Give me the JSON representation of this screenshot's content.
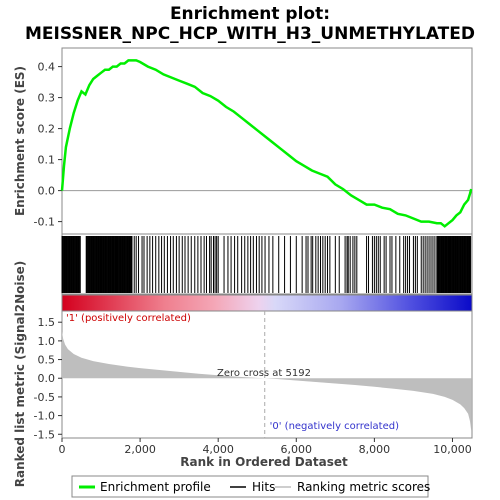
{
  "chart_data": {
    "type": "line",
    "title_line1": "Enrichment plot:",
    "title_line2": "MEISSNER_NPC_HCP_WITH_H3_UNMETHYLATED",
    "es_ylabel": "Enrichment score (ES)",
    "metric_ylabel": "Ranked list metric (Signal2Noise)",
    "xlabel": "Rank in Ordered Dataset",
    "xlim": [
      0,
      10500
    ],
    "x_ticks": [
      0,
      2000,
      4000,
      6000,
      8000,
      10000
    ],
    "x_tick_labels": [
      "0",
      "2,000",
      "4,000",
      "6,000",
      "8,000",
      "10,000"
    ],
    "es_ylim": [
      -0.14,
      0.46
    ],
    "es_ticks": [
      -0.1,
      0.0,
      0.1,
      0.2,
      0.3,
      0.4
    ],
    "es_tick_labels": [
      "-0.1",
      "0.0",
      "0.1",
      "0.2",
      "0.3",
      "0.4"
    ],
    "metric_ylim": [
      -1.6,
      1.8
    ],
    "metric_ticks": [
      -1.5,
      -1.0,
      -0.5,
      0.0,
      0.5,
      1.0,
      1.5
    ],
    "metric_tick_labels": [
      "-1.5",
      "-1.0",
      "-0.5",
      "0.0",
      "0.5",
      "1.0",
      "1.5"
    ],
    "zero_cross_rank": 5192,
    "zero_cross_label": "Zero cross at 5192",
    "pos_label": "'1' (positively correlated)",
    "neg_label": "'0' (negatively correlated)",
    "enrichment_profile": {
      "name": "Enrichment profile",
      "color": "#00ff00",
      "x": [
        0,
        50,
        100,
        200,
        300,
        400,
        500,
        600,
        700,
        800,
        900,
        1000,
        1100,
        1200,
        1300,
        1400,
        1500,
        1600,
        1700,
        1800,
        1900,
        2000,
        2200,
        2400,
        2600,
        2800,
        3000,
        3200,
        3400,
        3600,
        3800,
        4000,
        4200,
        4400,
        4600,
        4800,
        5000,
        5200,
        5400,
        5600,
        5800,
        6000,
        6200,
        6400,
        6600,
        6800,
        7000,
        7200,
        7400,
        7600,
        7800,
        8000,
        8200,
        8400,
        8600,
        8800,
        9000,
        9200,
        9400,
        9600,
        9700,
        9800,
        9900,
        10000,
        10100,
        10200,
        10300,
        10400,
        10450,
        10480
      ],
      "y": [
        0.0,
        0.08,
        0.14,
        0.2,
        0.25,
        0.29,
        0.32,
        0.31,
        0.34,
        0.36,
        0.37,
        0.38,
        0.39,
        0.39,
        0.4,
        0.4,
        0.41,
        0.41,
        0.42,
        0.42,
        0.42,
        0.415,
        0.4,
        0.39,
        0.375,
        0.365,
        0.355,
        0.345,
        0.335,
        0.315,
        0.305,
        0.29,
        0.27,
        0.255,
        0.235,
        0.215,
        0.195,
        0.175,
        0.155,
        0.135,
        0.115,
        0.095,
        0.08,
        0.065,
        0.055,
        0.045,
        0.02,
        0.005,
        -0.015,
        -0.03,
        -0.045,
        -0.045,
        -0.055,
        -0.06,
        -0.075,
        -0.08,
        -0.09,
        -0.1,
        -0.1,
        -0.105,
        -0.105,
        -0.115,
        -0.105,
        -0.095,
        -0.08,
        -0.07,
        -0.045,
        -0.03,
        -0.01,
        0.005
      ]
    },
    "hits": {
      "name": "Hits",
      "color": "#000000",
      "dense_segments": [
        [
          0,
          480
        ],
        [
          620,
          1000
        ],
        [
          1000,
          1800
        ],
        [
          9600,
          10480
        ]
      ],
      "sparse_ranks": [
        1850,
        1900,
        1960,
        2050,
        2100,
        2180,
        2250,
        2320,
        2400,
        2480,
        2550,
        2620,
        2700,
        2780,
        2850,
        2930,
        3000,
        3080,
        3150,
        3230,
        3310,
        3400,
        3480,
        3560,
        3640,
        3700,
        3780,
        3820,
        3880,
        3920,
        3960,
        4000,
        4150,
        4250,
        4330,
        4420,
        4500,
        4600,
        4680,
        4760,
        4830,
        4900,
        4980,
        5050,
        5120,
        5200,
        5300,
        5400,
        5550,
        5700,
        5850,
        6000,
        6150,
        6250,
        6300,
        6380,
        6420,
        6500,
        6560,
        6620,
        6680,
        6740,
        6800,
        6860,
        7000,
        7100,
        7250,
        7300,
        7330,
        7380,
        7450,
        7500,
        7550,
        7800,
        7850,
        7950,
        8000,
        8050,
        8100,
        8150,
        8250,
        8300,
        8400,
        8450,
        8550,
        8650,
        8750,
        8800,
        8850,
        8900,
        9000,
        9050,
        9100,
        9200,
        9250,
        9300,
        9350,
        9400,
        9450,
        9500,
        9550
      ]
    },
    "ranking_metric": {
      "name": "Ranking metric scores",
      "color": "#bebebe",
      "x": [
        0,
        30,
        80,
        150,
        300,
        500,
        800,
        1200,
        1600,
        2000,
        2500,
        3000,
        3500,
        4000,
        4500,
        5000,
        5192,
        5500,
        6000,
        6500,
        7000,
        7500,
        8000,
        8500,
        9000,
        9500,
        9800,
        10000,
        10200,
        10300,
        10400,
        10450,
        10480
      ],
      "y": [
        1.25,
        1.05,
        0.9,
        0.78,
        0.65,
        0.55,
        0.46,
        0.38,
        0.32,
        0.27,
        0.22,
        0.17,
        0.12,
        0.08,
        0.04,
        0.01,
        0.0,
        -0.02,
        -0.06,
        -0.1,
        -0.14,
        -0.18,
        -0.23,
        -0.28,
        -0.34,
        -0.42,
        -0.5,
        -0.58,
        -0.7,
        -0.8,
        -0.95,
        -1.15,
        -1.4
      ]
    },
    "legend": {
      "placement": "bottom",
      "items": [
        {
          "label": "Enrichment profile",
          "color": "#00ff00"
        },
        {
          "label": "Hits",
          "color": "#000000"
        },
        {
          "label": "Ranking metric scores",
          "color": "#bebebe"
        }
      ]
    }
  }
}
